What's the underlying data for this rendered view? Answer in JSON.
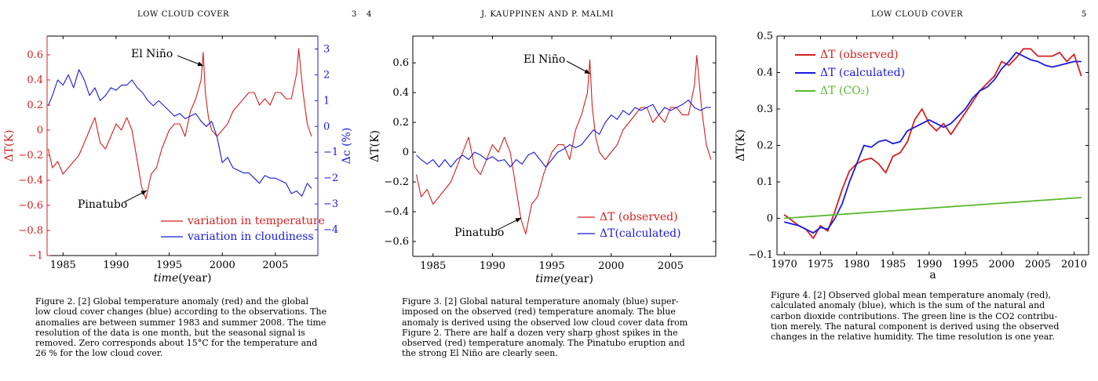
{
  "pages": {
    "p3": {
      "header": "LOW CLOUD COVER",
      "number": "3"
    },
    "p4": {
      "header": "J. KAUPPINEN AND P. MALMI",
      "number": "4"
    },
    "p5": {
      "header": "LOW CLOUD COVER",
      "number": "5"
    }
  },
  "captions": {
    "fig2": [
      "Figure 2. [2] Global temperature anomaly (red) and the global",
      "low cloud cover changes (blue) according to the observations. The",
      "anomalies are between summer 1983 and summer 2008. The time",
      "resolution of the data is one month, but the seasonal signal is",
      "removed. Zero corresponds about 15°C for the temperature and",
      "26 % for the low cloud cover."
    ],
    "fig3": [
      "Figure 3. [2] Global natural temperature anomaly (blue) super-",
      "imposed on the observed (red) temperature anomaly. The blue",
      "anomaly is derived using the observed low cloud cover data from",
      "Figure 2. There are half a dozen very sharp ghost spikes in the",
      "observed (red) temperature anomaly. The Pinatubo eruption and",
      "the strong El Niño are clearly seen."
    ],
    "fig4": [
      "Figure 4. [2] Observed global mean temperature anomaly (red),",
      "calculated anomaly (blue), which is the sum of the natural and",
      "carbon dioxide contributions. The green line is the CO2 contribu-",
      "tion merely. The natural component is derived using the observed",
      "changes in the relative humidity. The time resolution is one year."
    ]
  },
  "colors": {
    "red": "#d42020",
    "blue": "#1a1adc",
    "green": "#5cb82e",
    "axis": "#000000"
  },
  "chart_data": [
    {
      "type": "line",
      "id": "fig2",
      "xlabel_prefix": "time",
      "xlabel_suffix": "(year)",
      "xlim": [
        1983.5,
        2009
      ],
      "xticks": [
        1985,
        1990,
        1995,
        2000,
        2005
      ],
      "ylim": [
        -1,
        0.75
      ],
      "yticks": [
        -1,
        -0.8,
        -0.6,
        -0.4,
        -0.2,
        0,
        0.2,
        0.4,
        0.6
      ],
      "ytick_labels": [
        "−1",
        "−0.8",
        "−0.6",
        "−0.4",
        "−0.2",
        "0",
        "0.2",
        "0.4",
        "0.6"
      ],
      "ylabel_left": "ΔT(K)",
      "ylabel_right": "Δc (%)",
      "y2lim": [
        -5,
        3.5
      ],
      "y2ticks": [
        -4,
        -3,
        -2,
        -1,
        0,
        1,
        2,
        3
      ],
      "y2tick_labels": [
        "−4",
        "−3",
        "−2",
        "−1",
        "0",
        "1",
        "2",
        "3"
      ],
      "legend": [
        "variation in temperature",
        "variation in cloudiness"
      ],
      "legend_position": "bottom-right",
      "annotations": [
        "El Niño",
        "Pinatubo"
      ],
      "series": [
        {
          "name": "variation in temperature",
          "color": "red",
          "axis": "left",
          "x": [
            1983.6,
            1984,
            1984.5,
            1985,
            1985.5,
            1986,
            1986.5,
            1987,
            1987.5,
            1988,
            1988.5,
            1989,
            1989.5,
            1990,
            1990.5,
            1991,
            1991.5,
            1992,
            1992.4,
            1992.8,
            1993.3,
            1993.8,
            1994.3,
            1995,
            1995.5,
            1996,
            1996.5,
            1997,
            1997.5,
            1998,
            1998.2,
            1998.4,
            1998.7,
            1999,
            1999.5,
            2000,
            2000.5,
            2001,
            2001.5,
            2002,
            2002.5,
            2003,
            2003.5,
            2004,
            2004.5,
            2005,
            2005.5,
            2006,
            2006.5,
            2007,
            2007.2,
            2007.6,
            2008,
            2008.4
          ],
          "y": [
            -0.15,
            -0.3,
            -0.25,
            -0.35,
            -0.3,
            -0.25,
            -0.2,
            -0.1,
            0,
            0.1,
            -0.1,
            -0.15,
            -0.05,
            0.05,
            0,
            0.1,
            0,
            -0.25,
            -0.45,
            -0.55,
            -0.35,
            -0.3,
            -0.15,
            0,
            0.05,
            0.05,
            -0.05,
            0.15,
            0.25,
            0.4,
            0.62,
            0.3,
            0.1,
            0,
            -0.05,
            0,
            0.05,
            0.15,
            0.2,
            0.25,
            0.3,
            0.3,
            0.2,
            0.25,
            0.2,
            0.3,
            0.3,
            0.25,
            0.25,
            0.45,
            0.65,
            0.3,
            0.05,
            -0.05
          ]
        },
        {
          "name": "variation in cloudiness",
          "color": "blue",
          "axis": "right",
          "x": [
            1983.6,
            1984,
            1984.5,
            1985,
            1985.5,
            1986,
            1986.5,
            1987,
            1987.5,
            1988,
            1988.5,
            1989,
            1989.5,
            1990,
            1990.5,
            1991,
            1991.5,
            1992,
            1992.5,
            1993,
            1993.5,
            1994,
            1994.5,
            1995,
            1995.5,
            1996,
            1996.5,
            1997,
            1997.5,
            1998,
            1998.5,
            1999,
            1999.5,
            2000,
            2000.5,
            2001,
            2001.5,
            2002,
            2002.5,
            2003,
            2003.5,
            2004,
            2004.5,
            2005,
            2005.5,
            2006,
            2006.5,
            2007,
            2007.5,
            2008,
            2008.4
          ],
          "y": [
            0.8,
            1.2,
            1.8,
            1.6,
            2,
            1.5,
            2.2,
            1.8,
            1.2,
            1.5,
            1,
            1.2,
            1.5,
            1.4,
            1.6,
            1.6,
            1.8,
            1.5,
            1.3,
            1,
            0.8,
            1,
            0.8,
            0.6,
            0.4,
            0.5,
            0.3,
            0.4,
            0.5,
            0.2,
            0,
            0.2,
            -0.4,
            -1.4,
            -1.2,
            -1.6,
            -1.7,
            -1.8,
            -1.8,
            -2,
            -2.2,
            -1.9,
            -2,
            -2,
            -2.1,
            -2.2,
            -2.6,
            -2.5,
            -2.7,
            -2.2,
            -2.4
          ]
        }
      ]
    },
    {
      "type": "line",
      "id": "fig3",
      "xlabel_prefix": "time",
      "xlabel_suffix": "(year)",
      "xlim": [
        1983.3,
        2008.8
      ],
      "xticks": [
        1985,
        1990,
        1995,
        2000,
        2005
      ],
      "ylim": [
        -0.7,
        0.78
      ],
      "yticks": [
        -0.6,
        -0.4,
        -0.2,
        0,
        0.2,
        0.4,
        0.6
      ],
      "ytick_labels": [
        "−0.6",
        "−0.4",
        "−0.2",
        "0",
        "0.2",
        "0.4",
        "0.6"
      ],
      "ylabel_left": "ΔT(K)",
      "legend": [
        "ΔT (observed)",
        "ΔT(calculated)"
      ],
      "legend_position": "bottom-right",
      "annotations": [
        "El Niño",
        "Pinatubo"
      ],
      "series": [
        {
          "name": "ΔT (observed)",
          "color": "red",
          "x": [
            1983.6,
            1984,
            1984.5,
            1985,
            1985.5,
            1986,
            1986.5,
            1987,
            1987.5,
            1988,
            1988.5,
            1989,
            1989.5,
            1990,
            1990.5,
            1991,
            1991.5,
            1992,
            1992.4,
            1992.8,
            1993.3,
            1993.8,
            1994.3,
            1995,
            1995.5,
            1996,
            1996.5,
            1997,
            1997.5,
            1998,
            1998.2,
            1998.4,
            1998.7,
            1999,
            1999.5,
            2000,
            2000.5,
            2001,
            2001.5,
            2002,
            2002.5,
            2003,
            2003.5,
            2004,
            2004.5,
            2005,
            2005.5,
            2006,
            2006.5,
            2007,
            2007.2,
            2007.6,
            2008,
            2008.4
          ],
          "y": [
            -0.15,
            -0.3,
            -0.25,
            -0.35,
            -0.3,
            -0.25,
            -0.2,
            -0.1,
            0,
            0.1,
            -0.1,
            -0.15,
            -0.05,
            0.05,
            0,
            0.1,
            0,
            -0.25,
            -0.45,
            -0.55,
            -0.35,
            -0.3,
            -0.15,
            0,
            0.05,
            0.05,
            -0.05,
            0.15,
            0.25,
            0.4,
            0.62,
            0.3,
            0.1,
            0,
            -0.05,
            0,
            0.05,
            0.15,
            0.2,
            0.25,
            0.3,
            0.3,
            0.2,
            0.25,
            0.2,
            0.3,
            0.3,
            0.25,
            0.25,
            0.45,
            0.65,
            0.3,
            0.05,
            -0.05
          ]
        },
        {
          "name": "ΔT(calculated)",
          "color": "blue",
          "x": [
            1983.6,
            1984,
            1984.5,
            1985,
            1985.5,
            1986,
            1986.5,
            1987,
            1987.5,
            1988,
            1988.5,
            1989,
            1989.5,
            1990,
            1990.5,
            1991,
            1991.5,
            1992,
            1992.5,
            1993,
            1993.5,
            1994,
            1994.5,
            1995,
            1995.5,
            1996,
            1996.5,
            1997,
            1997.5,
            1998,
            1998.5,
            1999,
            1999.5,
            2000,
            2000.5,
            2001,
            2001.5,
            2002,
            2002.5,
            2003,
            2003.5,
            2004,
            2004.5,
            2005,
            2005.5,
            2006,
            2006.5,
            2007,
            2007.5,
            2008,
            2008.4
          ],
          "y": [
            -0.02,
            -0.05,
            -0.08,
            -0.05,
            -0.1,
            -0.05,
            -0.1,
            -0.05,
            -0.02,
            -0.05,
            0,
            -0.02,
            -0.05,
            -0.03,
            -0.06,
            -0.05,
            -0.1,
            -0.05,
            -0.08,
            -0.02,
            0,
            -0.05,
            -0.1,
            -0.05,
            0,
            0.02,
            0.05,
            0.03,
            0.05,
            0.1,
            0.15,
            0.12,
            0.2,
            0.25,
            0.22,
            0.28,
            0.25,
            0.3,
            0.28,
            0.3,
            0.32,
            0.25,
            0.3,
            0.28,
            0.3,
            0.32,
            0.35,
            0.3,
            0.28,
            0.3,
            0.3
          ]
        }
      ]
    },
    {
      "type": "line",
      "id": "fig4",
      "xlabel": "a",
      "xlim": [
        1969,
        2012
      ],
      "xticks": [
        1970,
        1975,
        1980,
        1985,
        1990,
        1995,
        2000,
        2005,
        2010
      ],
      "ylim": [
        -0.1,
        0.5
      ],
      "yticks": [
        -0.1,
        0,
        0.1,
        0.2,
        0.3,
        0.4,
        0.5
      ],
      "ytick_labels": [
        "−0.1",
        "0",
        "0.1",
        "0.2",
        "0.3",
        "0.4",
        "0.5"
      ],
      "ylabel_left": "ΔT(K)",
      "legend": [
        "ΔT (observed)",
        "ΔT (calculated)",
        "ΔT (CO₂)"
      ],
      "legend_position": "top-left",
      "series": [
        {
          "name": "ΔT (observed)",
          "color": "red",
          "x": [
            1970,
            1971,
            1972,
            1973,
            1974,
            1975,
            1976,
            1977,
            1978,
            1979,
            1980,
            1981,
            1982,
            1983,
            1984,
            1985,
            1986,
            1987,
            1988,
            1989,
            1990,
            1991,
            1992,
            1993,
            1994,
            1995,
            1996,
            1997,
            1998,
            1999,
            2000,
            2001,
            2002,
            2003,
            2004,
            2005,
            2006,
            2007,
            2008,
            2009,
            2010,
            2011
          ],
          "y": [
            0.01,
            -0.005,
            -0.02,
            -0.03,
            -0.055,
            -0.02,
            -0.035,
            0.02,
            0.08,
            0.13,
            0.15,
            0.16,
            0.165,
            0.15,
            0.125,
            0.17,
            0.18,
            0.21,
            0.27,
            0.3,
            0.26,
            0.24,
            0.26,
            0.23,
            0.26,
            0.29,
            0.32,
            0.35,
            0.37,
            0.39,
            0.43,
            0.42,
            0.44,
            0.465,
            0.465,
            0.445,
            0.445,
            0.445,
            0.455,
            0.43,
            0.45,
            0.39
          ]
        },
        {
          "name": "ΔT (calculated)",
          "color": "blue",
          "x": [
            1970,
            1971,
            1972,
            1973,
            1974,
            1975,
            1976,
            1977,
            1978,
            1979,
            1980,
            1981,
            1982,
            1983,
            1984,
            1985,
            1986,
            1987,
            1988,
            1989,
            1990,
            1991,
            1992,
            1993,
            1994,
            1995,
            1996,
            1997,
            1998,
            1999,
            2000,
            2001,
            2002,
            2003,
            2004,
            2005,
            2006,
            2007,
            2008,
            2009,
            2010,
            2011
          ],
          "y": [
            -0.01,
            -0.015,
            -0.02,
            -0.03,
            -0.04,
            -0.025,
            -0.03,
            0,
            0.04,
            0.1,
            0.15,
            0.2,
            0.195,
            0.21,
            0.215,
            0.205,
            0.21,
            0.24,
            0.25,
            0.26,
            0.27,
            0.26,
            0.25,
            0.26,
            0.28,
            0.3,
            0.33,
            0.35,
            0.36,
            0.38,
            0.41,
            0.43,
            0.455,
            0.445,
            0.435,
            0.43,
            0.42,
            0.415,
            0.42,
            0.425,
            0.43,
            0.43
          ]
        },
        {
          "name": "ΔT (CO₂)",
          "color": "green",
          "x": [
            1970,
            2011
          ],
          "y": [
            0.0,
            0.057
          ]
        }
      ]
    }
  ]
}
